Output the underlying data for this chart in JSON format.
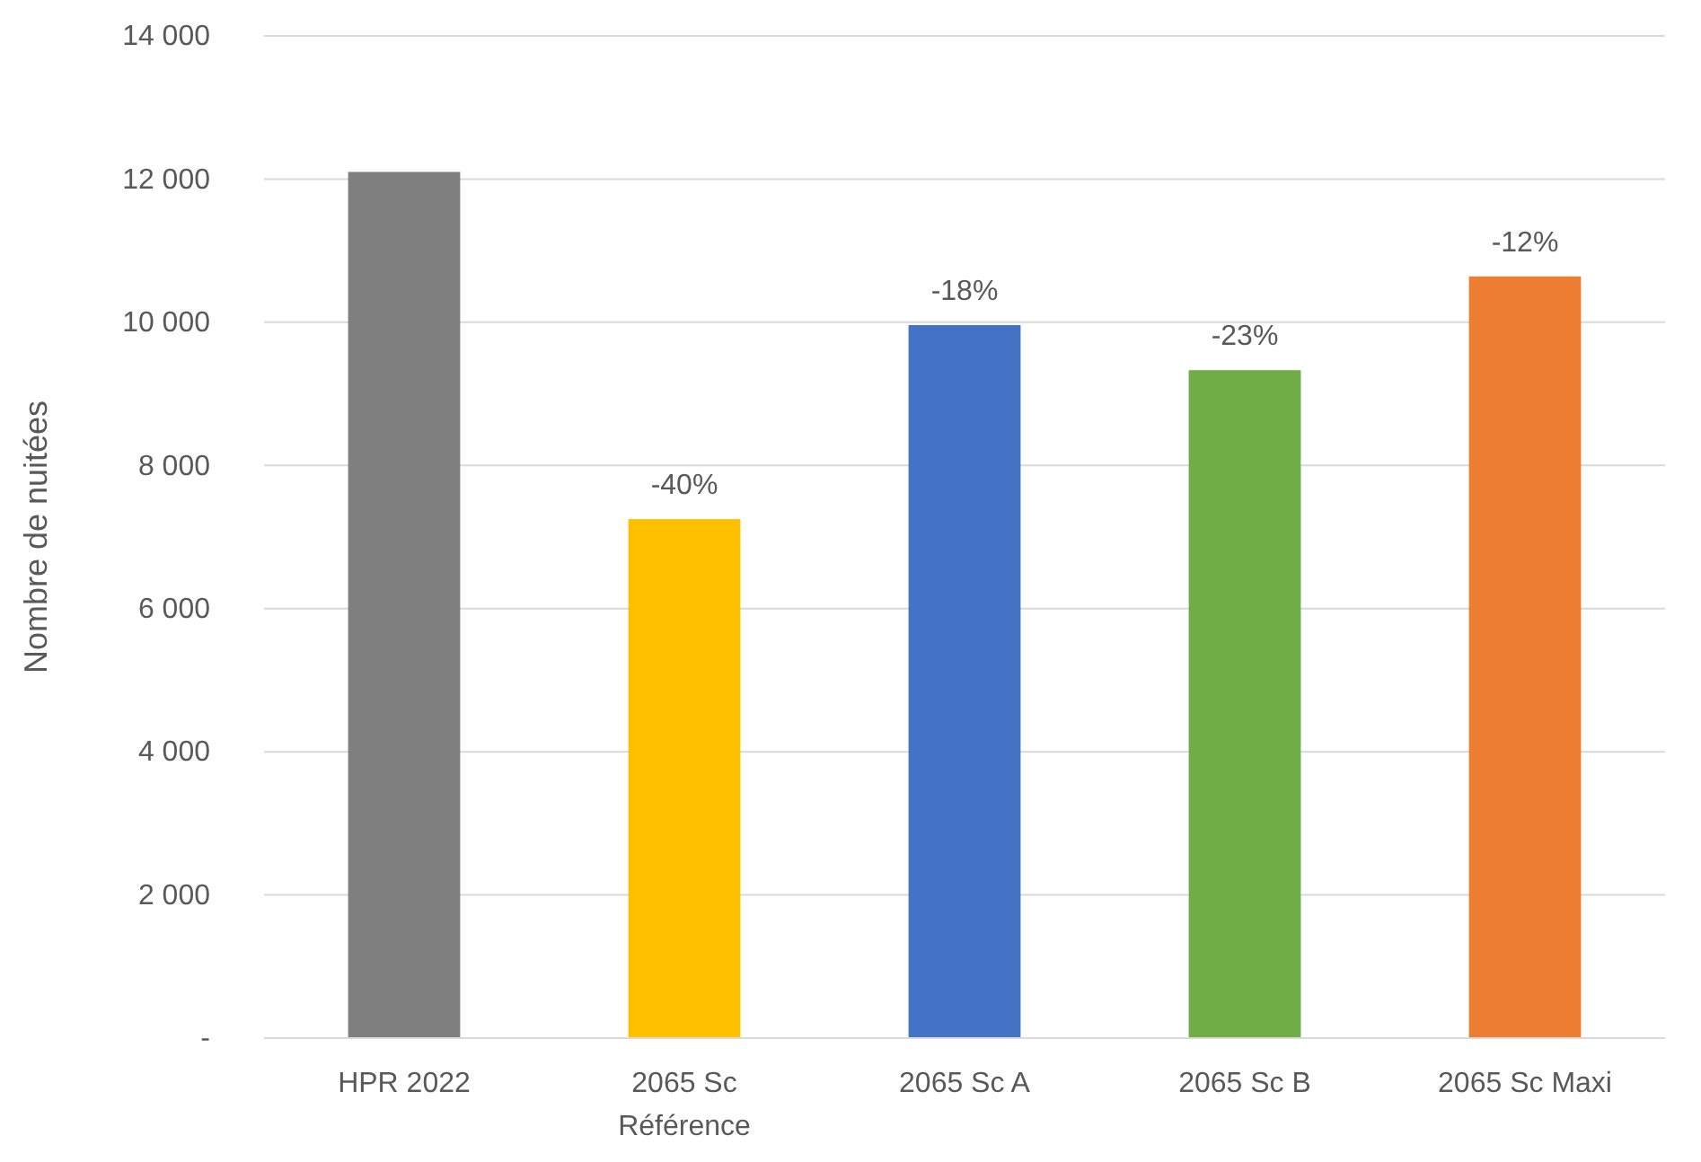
{
  "chart_data": {
    "type": "bar",
    "ylabel": "Nombre de nuitées",
    "categories": [
      "HPR 2022",
      "2065 Sc Référence",
      "2065 Sc A",
      "2065 Sc B",
      "2065 Sc Maxi"
    ],
    "values": [
      12100,
      7250,
      9960,
      9330,
      10640
    ],
    "colors": [
      "#7f7f7f",
      "#ffc000",
      "#4472c4",
      "#70ad47",
      "#ed7d31"
    ],
    "annotations": [
      {
        "text": "-40%",
        "x": "2065 Sc Référence",
        "y": 7250
      },
      {
        "text": "-18%",
        "x": "2065 Sc A",
        "y": 9960
      },
      {
        "text": "-23%",
        "x": "2065 Sc B",
        "y": 9330
      },
      {
        "text": "-12%",
        "x": "2065 Sc Maxi",
        "y": 10640
      }
    ],
    "ylim": [
      0,
      14000
    ],
    "yticks": [
      {
        "value": 0,
        "label": "-"
      },
      {
        "value": 2000,
        "label": "2 000"
      },
      {
        "value": 4000,
        "label": "4 000"
      },
      {
        "value": 6000,
        "label": "6 000"
      },
      {
        "value": 8000,
        "label": "8 000"
      },
      {
        "value": 10000,
        "label": "10 000"
      },
      {
        "value": 12000,
        "label": "12 000"
      },
      {
        "value": 14000,
        "label": "14 000"
      }
    ],
    "grid": "y"
  }
}
